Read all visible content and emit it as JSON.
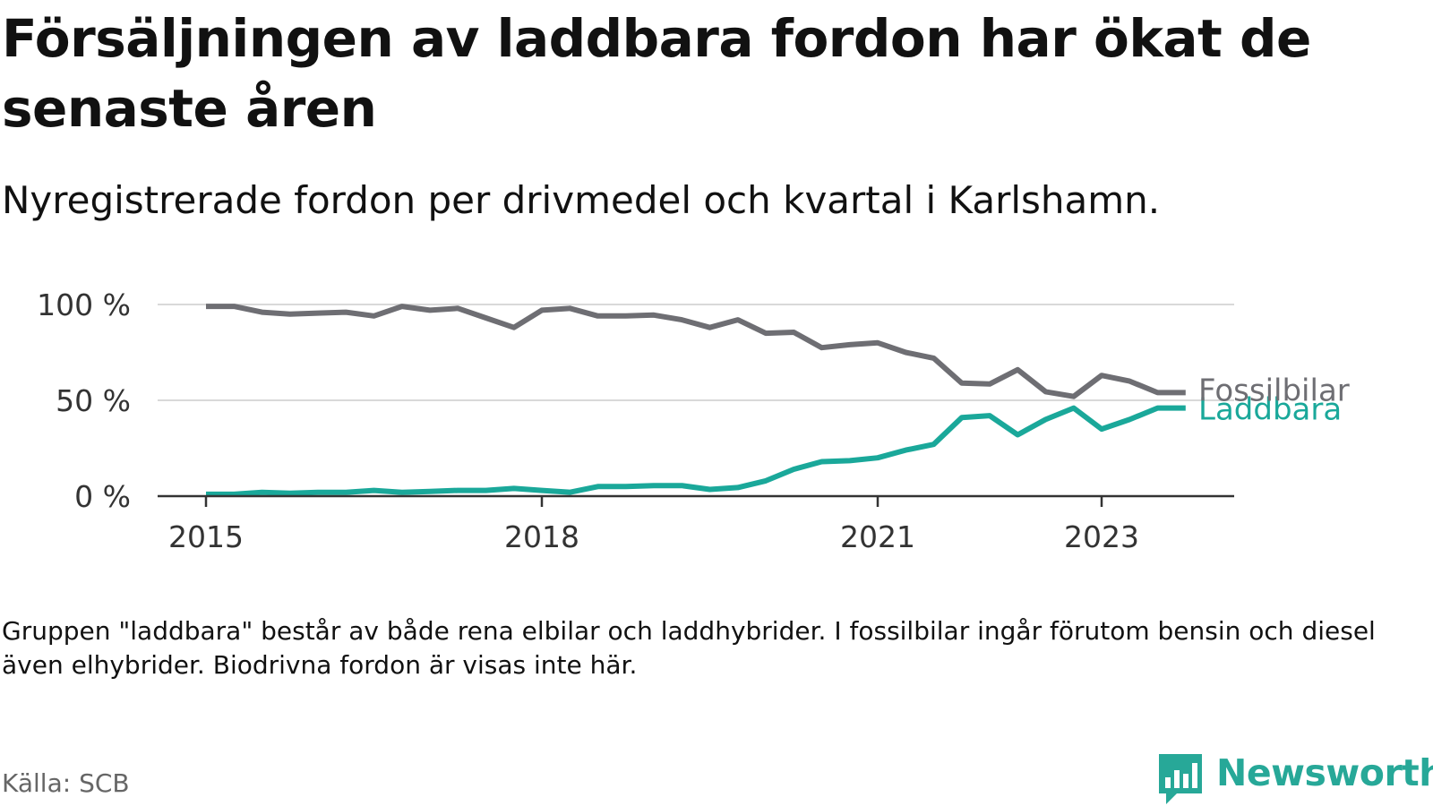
{
  "title": "Försäljningen av laddbara fordon har ökat de senaste åren",
  "subtitle": "Nyregistrerade fordon per drivmedel och kvartal i Karlshamn.",
  "note": "Gruppen \"laddbara\" består av både rena elbilar och laddhybrider. I fossilbilar ingår förutom bensin och diesel även elhybrider. Biodrivna fordon är visas inte här.",
  "source": "Källa: SCB",
  "brand": {
    "name": "Newsworthy",
    "color": "#27a898"
  },
  "chart_data": {
    "type": "line",
    "title": "Försäljningen av laddbara fordon har ökat de senaste åren",
    "xlabel": "",
    "ylabel": "",
    "xlim": [
      2015,
      2024
    ],
    "ylim": [
      0,
      100
    ],
    "grid": true,
    "y_ticks": [
      {
        "value": 0,
        "label": "0 %"
      },
      {
        "value": 50,
        "label": "50 %"
      },
      {
        "value": 100,
        "label": "100 %"
      }
    ],
    "x_ticks": [
      {
        "value": 2015,
        "label": "2015"
      },
      {
        "value": 2018,
        "label": "2018"
      },
      {
        "value": 2021,
        "label": "2021"
      },
      {
        "value": 2023,
        "label": "2023"
      }
    ],
    "x": [
      2015.0,
      2015.25,
      2015.5,
      2015.75,
      2016.0,
      2016.25,
      2016.5,
      2016.75,
      2017.0,
      2017.25,
      2017.5,
      2017.75,
      2018.0,
      2018.25,
      2018.5,
      2018.75,
      2019.0,
      2019.25,
      2019.5,
      2019.75,
      2020.0,
      2020.25,
      2020.5,
      2020.75,
      2021.0,
      2021.25,
      2021.5,
      2021.75,
      2022.0,
      2022.25,
      2022.5,
      2022.75,
      2023.0,
      2023.25,
      2023.5,
      2023.75
    ],
    "series": [
      {
        "name": "Fossilbilar",
        "color": "#6e6e73",
        "values": [
          99,
          99,
          96,
          95,
          95.5,
          96,
          94,
          99,
          97,
          98,
          93,
          88,
          97,
          98,
          94,
          94,
          94.5,
          92,
          88,
          92,
          85,
          85.5,
          77.5,
          79,
          80,
          75,
          72,
          59,
          58.5,
          66,
          54.5,
          52,
          63,
          60,
          54,
          54
        ]
      },
      {
        "name": "Laddbara",
        "color": "#1aa89a",
        "values": [
          1,
          1,
          2,
          1.5,
          2,
          2,
          3,
          2,
          2.5,
          3,
          3,
          4,
          3,
          2,
          5,
          5,
          5.5,
          5.5,
          3.5,
          4.5,
          8,
          14,
          18,
          18.5,
          20,
          24,
          27,
          41,
          42,
          32,
          40,
          46,
          35,
          40,
          46,
          46
        ]
      }
    ]
  }
}
